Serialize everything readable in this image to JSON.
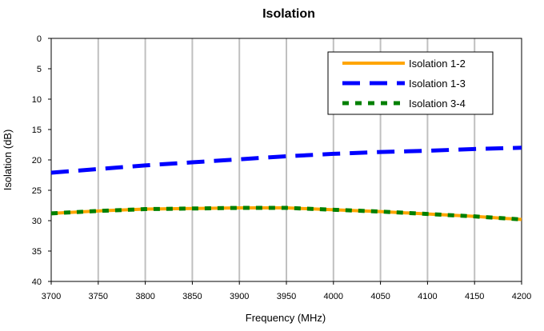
{
  "chart_data": {
    "type": "line",
    "title": "Isolation",
    "xlabel": "Frequency (MHz)",
    "ylabel": "Isolation (dB)",
    "xlim": [
      3700,
      4200
    ],
    "ylim": [
      0,
      40
    ],
    "y_inverted": true,
    "grid": "vertical",
    "legend_position": "top-right",
    "x_ticks": [
      "3700",
      "3750",
      "3800",
      "3850",
      "3900",
      "3950",
      "4000",
      "4050",
      "4100",
      "4150",
      "4200"
    ],
    "y_ticks": [
      "0",
      "5",
      "10",
      "15",
      "20",
      "25",
      "30",
      "35",
      "40"
    ],
    "x": [
      3700,
      3750,
      3800,
      3850,
      3900,
      3950,
      4000,
      4050,
      4100,
      4150,
      4200
    ],
    "series": [
      {
        "name": "Isolation 1-2",
        "color": "#FFA500",
        "style": "solid",
        "values": [
          28.8,
          28.4,
          28.1,
          28.0,
          27.9,
          27.9,
          28.2,
          28.5,
          28.9,
          29.3,
          29.8
        ]
      },
      {
        "name": "Isolation 1-3",
        "color": "#0000FF",
        "style": "long-dash",
        "values": [
          22.1,
          21.5,
          20.9,
          20.4,
          19.9,
          19.4,
          19.0,
          18.7,
          18.5,
          18.2,
          18.0
        ]
      },
      {
        "name": "Isolation 3-4",
        "color": "#008000",
        "style": "dotted",
        "values": [
          28.8,
          28.4,
          28.1,
          28.0,
          27.9,
          27.9,
          28.2,
          28.5,
          28.9,
          29.3,
          29.8
        ]
      }
    ]
  }
}
